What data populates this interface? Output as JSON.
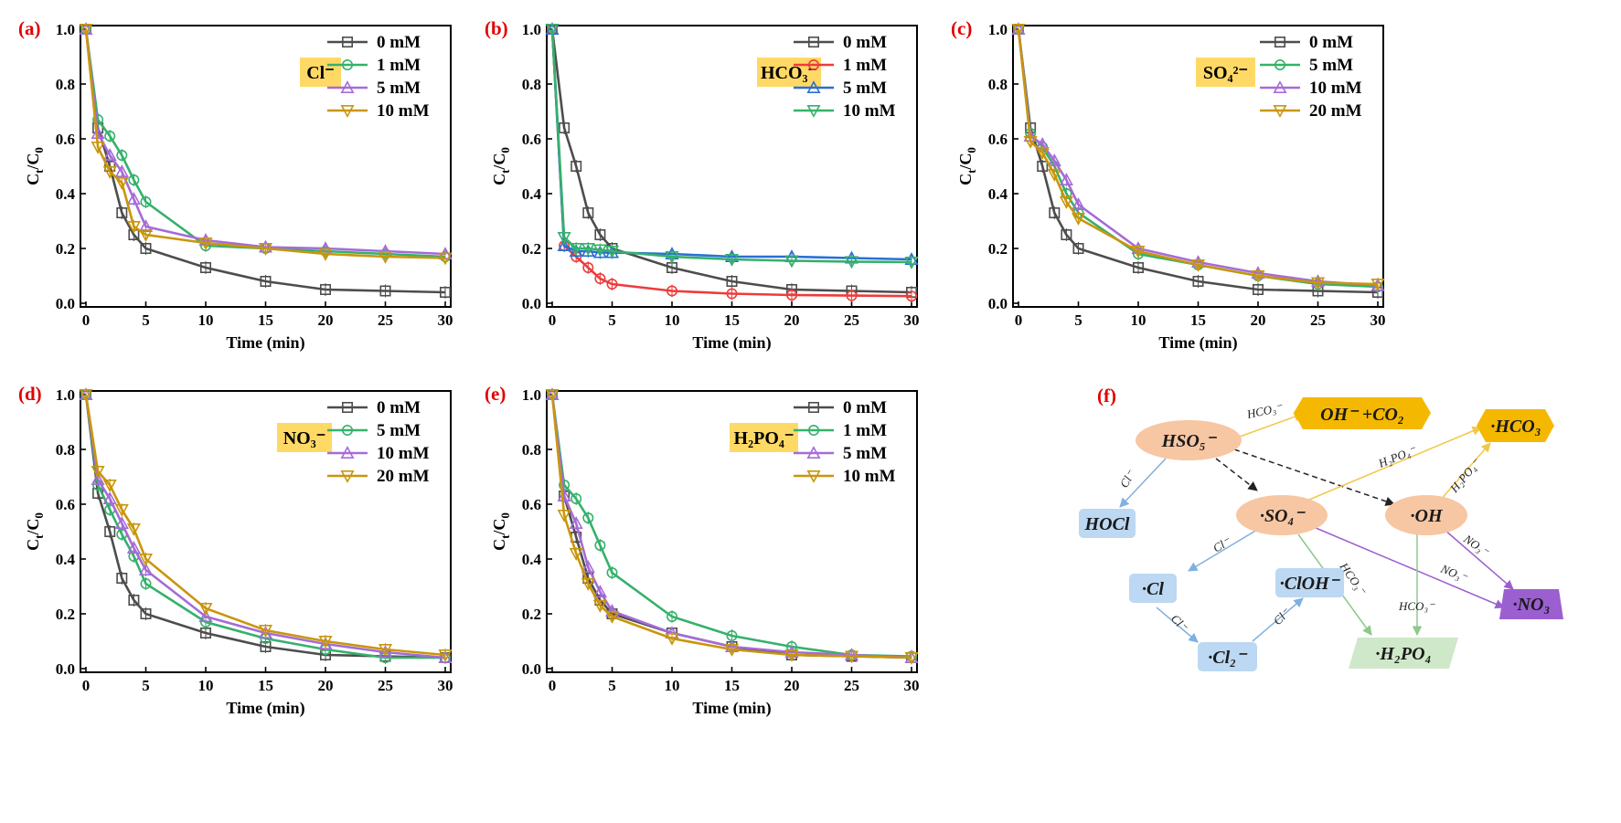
{
  "chart_data": [
    {
      "type": "line",
      "panel": "(a)",
      "annotation": "Cl⁻",
      "xlabel": "Time (min)",
      "ylabel": "Ct/C0",
      "xlim": [
        0,
        30
      ],
      "ylim": [
        0,
        1.0
      ],
      "xticks": [
        "0",
        "5",
        "10",
        "15",
        "20",
        "25",
        "30"
      ],
      "yticks": [
        "0.0",
        "0.2",
        "0.4",
        "0.6",
        "0.8",
        "1.0"
      ],
      "legend_position": "top-right",
      "x": [
        0,
        1,
        2,
        3,
        4,
        5,
        10,
        15,
        20,
        25,
        30
      ],
      "series": [
        {
          "name": "0 mM",
          "color": "#4d4d4d",
          "marker": "square",
          "values": [
            1.0,
            0.64,
            0.5,
            0.33,
            0.25,
            0.2,
            0.13,
            0.08,
            0.05,
            0.045,
            0.04
          ]
        },
        {
          "name": "1 mM",
          "color": "#35b16b",
          "marker": "circle",
          "values": [
            1.0,
            0.67,
            0.61,
            0.54,
            0.45,
            0.37,
            0.21,
            0.2,
            0.19,
            0.18,
            0.17
          ]
        },
        {
          "name": "5 mM",
          "color": "#a66bd8",
          "marker": "triangle-up",
          "values": [
            1.0,
            0.62,
            0.54,
            0.48,
            0.38,
            0.28,
            0.23,
            0.205,
            0.2,
            0.19,
            0.18
          ]
        },
        {
          "name": "10 mM",
          "color": "#c9960c",
          "marker": "triangle-down",
          "values": [
            1.0,
            0.57,
            0.48,
            0.44,
            0.28,
            0.25,
            0.22,
            0.2,
            0.18,
            0.17,
            0.165
          ]
        }
      ]
    },
    {
      "type": "line",
      "panel": "(b)",
      "annotation": "HCO₃⁻",
      "xlabel": "Time (min)",
      "ylabel": "Ct/C0",
      "xlim": [
        0,
        30
      ],
      "ylim": [
        0,
        1.0
      ],
      "xticks": [
        "0",
        "5",
        "10",
        "15",
        "20",
        "25",
        "30"
      ],
      "yticks": [
        "0.0",
        "0.2",
        "0.4",
        "0.6",
        "0.8",
        "1.0"
      ],
      "legend_position": "top-right",
      "x": [
        0,
        1,
        2,
        3,
        4,
        5,
        10,
        15,
        20,
        25,
        30
      ],
      "series": [
        {
          "name": "0 mM",
          "color": "#4d4d4d",
          "marker": "square",
          "values": [
            1.0,
            0.64,
            0.5,
            0.33,
            0.25,
            0.2,
            0.13,
            0.08,
            0.05,
            0.045,
            0.04
          ]
        },
        {
          "name": "1 mM",
          "color": "#ee3b3b",
          "marker": "circle",
          "values": [
            1.0,
            0.21,
            0.17,
            0.13,
            0.09,
            0.07,
            0.045,
            0.035,
            0.03,
            0.028,
            0.026
          ]
        },
        {
          "name": "5 mM",
          "color": "#2a6fd6",
          "marker": "triangle-up",
          "values": [
            1.0,
            0.21,
            0.19,
            0.19,
            0.185,
            0.185,
            0.18,
            0.17,
            0.17,
            0.165,
            0.16
          ]
        },
        {
          "name": "10 mM",
          "color": "#35b16b",
          "marker": "triangle-down",
          "values": [
            1.0,
            0.24,
            0.2,
            0.2,
            0.195,
            0.19,
            0.17,
            0.16,
            0.155,
            0.152,
            0.15
          ]
        }
      ]
    },
    {
      "type": "line",
      "panel": "(c)",
      "annotation": "SO₄²⁻",
      "xlabel": "Time (min)",
      "ylabel": "Ct/C0",
      "xlim": [
        0,
        30
      ],
      "ylim": [
        0,
        1.0
      ],
      "xticks": [
        "0",
        "5",
        "10",
        "15",
        "20",
        "25",
        "30"
      ],
      "yticks": [
        "0.0",
        "0.2",
        "0.4",
        "0.6",
        "0.8",
        "1.0"
      ],
      "legend_position": "top-right",
      "x": [
        0,
        1,
        2,
        3,
        4,
        5,
        10,
        15,
        20,
        25,
        30
      ],
      "series": [
        {
          "name": "0 mM",
          "color": "#4d4d4d",
          "marker": "square",
          "values": [
            1.0,
            0.64,
            0.5,
            0.33,
            0.25,
            0.2,
            0.13,
            0.08,
            0.05,
            0.045,
            0.04
          ]
        },
        {
          "name": "5 mM",
          "color": "#35b16b",
          "marker": "circle",
          "values": [
            1.0,
            0.62,
            0.57,
            0.5,
            0.4,
            0.33,
            0.18,
            0.14,
            0.1,
            0.07,
            0.06
          ]
        },
        {
          "name": "10 mM",
          "color": "#a66bd8",
          "marker": "triangle-up",
          "values": [
            1.0,
            0.61,
            0.58,
            0.52,
            0.45,
            0.36,
            0.2,
            0.15,
            0.11,
            0.08,
            0.065
          ]
        },
        {
          "name": "20 mM",
          "color": "#c9960c",
          "marker": "triangle-down",
          "values": [
            1.0,
            0.59,
            0.55,
            0.47,
            0.37,
            0.31,
            0.19,
            0.14,
            0.1,
            0.075,
            0.07
          ]
        }
      ]
    },
    {
      "type": "line",
      "panel": "(d)",
      "annotation": "NO₃⁻",
      "xlabel": "Time (min)",
      "ylabel": "Ct/C0",
      "xlim": [
        0,
        30
      ],
      "ylim": [
        0,
        1.0
      ],
      "xticks": [
        "0",
        "5",
        "10",
        "15",
        "20",
        "25",
        "30"
      ],
      "yticks": [
        "0.0",
        "0.2",
        "0.4",
        "0.6",
        "0.8",
        "1.0"
      ],
      "legend_position": "top-right",
      "x": [
        0,
        1,
        2,
        3,
        4,
        5,
        10,
        15,
        20,
        25,
        30
      ],
      "series": [
        {
          "name": "0 mM",
          "color": "#4d4d4d",
          "marker": "square",
          "values": [
            1.0,
            0.64,
            0.5,
            0.33,
            0.25,
            0.2,
            0.13,
            0.08,
            0.05,
            0.045,
            0.04
          ]
        },
        {
          "name": "5 mM",
          "color": "#35b16b",
          "marker": "circle",
          "values": [
            1.0,
            0.67,
            0.58,
            0.49,
            0.41,
            0.31,
            0.17,
            0.11,
            0.07,
            0.04,
            0.04
          ]
        },
        {
          "name": "10 mM",
          "color": "#a66bd8",
          "marker": "triangle-up",
          "values": [
            1.0,
            0.69,
            0.62,
            0.53,
            0.44,
            0.36,
            0.19,
            0.13,
            0.09,
            0.06,
            0.04
          ]
        },
        {
          "name": "20 mM",
          "color": "#c9960c",
          "marker": "triangle-down",
          "values": [
            1.0,
            0.72,
            0.67,
            0.58,
            0.51,
            0.4,
            0.22,
            0.14,
            0.1,
            0.07,
            0.05
          ]
        }
      ]
    },
    {
      "type": "line",
      "panel": "(e)",
      "annotation": "H₂PO₄⁻",
      "xlabel": "Time (min)",
      "ylabel": "Ct/C0",
      "xlim": [
        0,
        30
      ],
      "ylim": [
        0,
        1.0
      ],
      "xticks": [
        "0",
        "5",
        "10",
        "15",
        "20",
        "25",
        "30"
      ],
      "yticks": [
        "0.0",
        "0.2",
        "0.4",
        "0.6",
        "0.8",
        "1.0"
      ],
      "legend_position": "top-right",
      "x": [
        0,
        1,
        2,
        3,
        4,
        5,
        10,
        15,
        20,
        25,
        30
      ],
      "series": [
        {
          "name": "0 mM",
          "color": "#4d4d4d",
          "marker": "square",
          "values": [
            1.0,
            0.63,
            0.48,
            0.33,
            0.25,
            0.2,
            0.13,
            0.08,
            0.05,
            0.045,
            0.04
          ]
        },
        {
          "name": "1 mM",
          "color": "#35b16b",
          "marker": "circle",
          "values": [
            1.0,
            0.67,
            0.62,
            0.55,
            0.45,
            0.35,
            0.19,
            0.12,
            0.08,
            0.05,
            0.045
          ]
        },
        {
          "name": "5 mM",
          "color": "#a66bd8",
          "marker": "triangle-up",
          "values": [
            1.0,
            0.63,
            0.53,
            0.37,
            0.28,
            0.21,
            0.13,
            0.08,
            0.06,
            0.05,
            0.04
          ]
        },
        {
          "name": "10 mM",
          "color": "#c9960c",
          "marker": "triangle-down",
          "values": [
            1.0,
            0.56,
            0.42,
            0.31,
            0.23,
            0.19,
            0.11,
            0.07,
            0.05,
            0.045,
            0.04
          ]
        }
      ]
    }
  ],
  "diagram": {
    "panel": "(f)",
    "nodes": {
      "hso5": "HSO₅⁻",
      "so4": "·SO₄⁻",
      "oh": "·OH",
      "hocl": "HOCl",
      "cl": "·Cl",
      "cloh": "·ClOH⁻",
      "cl2": "·Cl₂⁻",
      "h2po4": "·H₂PO₄",
      "no3": "·NO₃",
      "ohco2": "OH⁻ +CO₂",
      "hco3": "·HCO₃"
    },
    "edge_labels": {
      "hco3_top": "HCO₃⁻",
      "cl_hso5": "Cl⁻",
      "h2po4_a": "H₂PO₄⁻",
      "h2po4_b": "H₂PO₄⁻",
      "cl_so4": "Cl⁻",
      "hco3_so4": "HCO₃⁻",
      "no3_a": "NO₃⁻",
      "no3_b": "NO₃⁻",
      "cl_cl": "Cl⁻",
      "cl_cloh": "Cl⁻",
      "hco3_oh": "HCO₃⁻"
    },
    "colors": {
      "orange_node": "#f7c6a3",
      "blue_node": "#bcd8f2",
      "green_node": "#cfe8c9",
      "purple_node": "#9b5fd0",
      "yellow_node": "#f5b800",
      "blue_edge": "#7fb0e0",
      "green_edge": "#8cc98a",
      "purple_edge": "#9b5fd0",
      "yellow_edge": "#f2c84b"
    }
  }
}
